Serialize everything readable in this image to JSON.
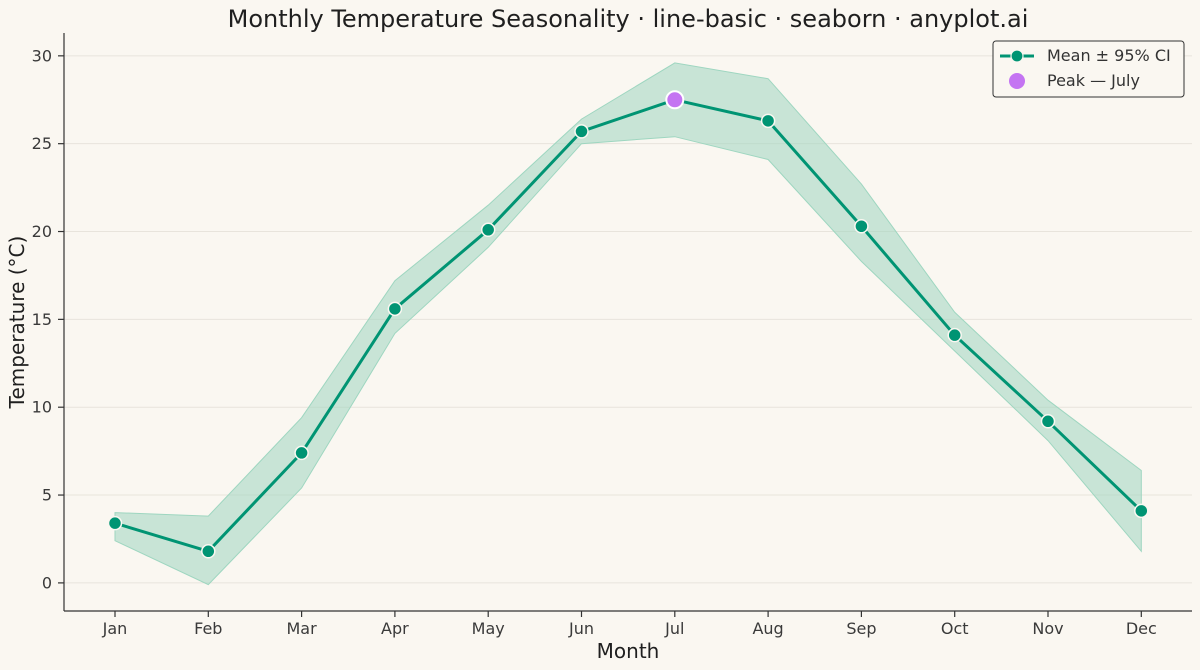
{
  "chart_data": {
    "type": "line",
    "title": "Monthly Temperature Seasonality · line-basic · seaborn · anyplot.ai",
    "xlabel": "Month",
    "ylabel": "Temperature (°C)",
    "categories": [
      "Jan",
      "Feb",
      "Mar",
      "Apr",
      "May",
      "Jun",
      "Jul",
      "Aug",
      "Sep",
      "Oct",
      "Nov",
      "Dec"
    ],
    "ylim": [
      -1.6,
      31.3
    ],
    "yticks": [
      0,
      5,
      10,
      15,
      20,
      25,
      30
    ],
    "grid": "horizontal",
    "legend_position": "top-right",
    "series": [
      {
        "name": "Mean ± 95% CI",
        "values": [
          3.4,
          1.8,
          7.4,
          15.6,
          20.1,
          25.7,
          27.5,
          26.3,
          20.3,
          14.1,
          9.2,
          4.1
        ],
        "ci_lower": [
          2.4,
          -0.1,
          5.4,
          14.2,
          19.1,
          25.0,
          25.4,
          24.1,
          18.3,
          13.2,
          8.1,
          1.8
        ],
        "ci_upper": [
          4.0,
          3.8,
          9.4,
          17.2,
          21.5,
          26.4,
          29.6,
          28.7,
          22.7,
          15.4,
          10.4,
          6.4
        ],
        "color": "#009473",
        "band_color": "#9ed6c0"
      }
    ],
    "highlight": {
      "name": "Peak — July",
      "category": "Jul",
      "value": 27.5,
      "color": "#c474f2"
    }
  },
  "colors": {
    "background": "#faf7f1",
    "grid": "#e8e4dc",
    "axis": "#333333"
  }
}
